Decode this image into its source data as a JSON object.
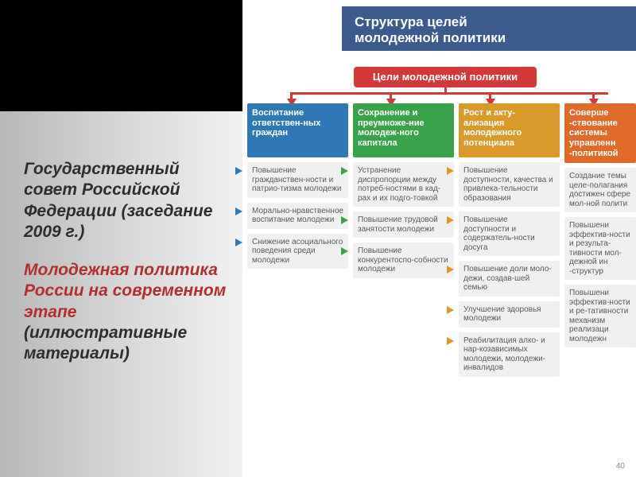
{
  "slide_number": "40",
  "left": {
    "line1": "Государственный совет Российской Федерации (заседание 2009 г.)",
    "line1_color": "#2e2e2e",
    "line2": "Молодежная политика России на современном этапе",
    "line2_color": "#b03030",
    "line3": "(иллюстративные материалы)",
    "line3_color": "#2e2e2e",
    "font_size": 21
  },
  "header": {
    "title_l1": "Структура целей",
    "title_l2": "молодежной политики",
    "bg": "#3d5a8c"
  },
  "goals_pill": {
    "label": "Цели молодежной политики",
    "bg": "#d23a3a"
  },
  "red_tree": {
    "color": "#d23a3a"
  },
  "columns": [
    {
      "accent": "#2f77b5",
      "head": "Воспитание ответствен-ных граждан",
      "cells": [
        "Повышение гражданствен-ности и патрио-тизма молодежи",
        "Морально-нравственное воспитание молодежи",
        "Снижение асоциального поведения среди молодежи"
      ]
    },
    {
      "accent": "#3aa24a",
      "head": "Сохранение и преумноже-ние молодеж-ного капитала",
      "cells": [
        "Устранение диспропорции между потреб-ностями в кад-рах и их подго-товкой",
        "Повышение трудовой занятости молодежи",
        "Повышение конкурентоспо-собности молодежи"
      ]
    },
    {
      "accent": "#d99a2b",
      "head": "Рост и акту-ализация молодежного потенциала",
      "cells": [
        "Повышение доступности, качества и привлека-тельности образования",
        "Повышение доступности и содержатель-ности досуга",
        "Повышение доли моло-дежи, создав-шей семью",
        "Улучшение здоровья молодежи",
        "Реабилитация алко- и нар-козависимых молодежи, молодежи-инвалидов"
      ]
    },
    {
      "accent": "#e06a2a",
      "head": "Соверше​-ствование системы управленн​-политикой",
      "cells": [
        "Создание​ темы целе-полагания​ достижен​ сфере мол-ной полити​",
        "Повышени​ эффектив-ности и результа-тивности мол-дежной ин​-структур​",
        "Повышени​ эффектив-ности и ре-тативности механизм​ реализаци​ молодежн​"
      ]
    }
  ]
}
